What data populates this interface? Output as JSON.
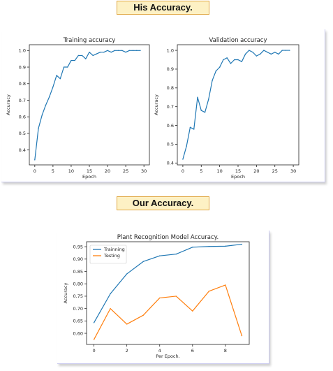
{
  "badges": {
    "top": "His Accuracy.",
    "bottom": "Our Accuracy."
  },
  "colors": {
    "blue": "#1f77b4",
    "orange": "#ff7f0e",
    "badge_bg": "#fdf1c4",
    "badge_border": "#e0a640"
  },
  "chart_data": [
    {
      "id": "training",
      "type": "line",
      "title": "Training accuracy",
      "xlabel": "Epoch",
      "ylabel": "Accuracy",
      "xlim": [
        -1.5,
        31.5
      ],
      "ylim": [
        0.31,
        1.035
      ],
      "xticks": [
        0,
        5,
        10,
        15,
        20,
        25,
        30
      ],
      "yticks": [
        0.4,
        0.5,
        0.6,
        0.7,
        0.8,
        0.9,
        1.0
      ],
      "ytick_labels": [
        "0.4",
        "0.5",
        "0.6",
        "0.7",
        "0.8",
        "0.9",
        "1.0"
      ],
      "series": [
        {
          "color": "#1f77b4",
          "x": [
            0,
            1,
            2,
            3,
            4,
            5,
            6,
            7,
            8,
            9,
            10,
            11,
            12,
            13,
            14,
            15,
            16,
            17,
            18,
            19,
            20,
            21,
            22,
            23,
            24,
            25,
            26,
            27,
            28,
            29
          ],
          "values": [
            0.34,
            0.53,
            0.61,
            0.67,
            0.72,
            0.78,
            0.85,
            0.83,
            0.9,
            0.9,
            0.94,
            0.94,
            0.97,
            0.97,
            0.95,
            0.99,
            0.97,
            0.98,
            0.99,
            0.99,
            1.0,
            0.99,
            1.0,
            1.0,
            1.0,
            0.99,
            1.0,
            1.0,
            1.0,
            1.0
          ]
        }
      ]
    },
    {
      "id": "validation",
      "type": "line",
      "title": "Validation accuracy",
      "xlabel": "Epoch",
      "ylabel": "Accuracy",
      "xlim": [
        -1.5,
        31.5
      ],
      "ylim": [
        0.39,
        1.03
      ],
      "xticks": [
        0,
        5,
        10,
        15,
        20,
        25,
        30
      ],
      "yticks": [
        0.4,
        0.5,
        0.6,
        0.7,
        0.8,
        0.9,
        1.0
      ],
      "ytick_labels": [
        "0.4",
        "0.5",
        "0.6",
        "0.7",
        "0.8",
        "0.9",
        "1.0"
      ],
      "series": [
        {
          "color": "#1f77b4",
          "x": [
            0,
            1,
            2,
            3,
            4,
            5,
            6,
            7,
            8,
            9,
            10,
            11,
            12,
            13,
            14,
            15,
            16,
            17,
            18,
            19,
            20,
            21,
            22,
            23,
            24,
            25,
            26,
            27,
            28,
            29
          ],
          "values": [
            0.42,
            0.49,
            0.59,
            0.58,
            0.75,
            0.68,
            0.67,
            0.74,
            0.84,
            0.89,
            0.91,
            0.95,
            0.96,
            0.93,
            0.95,
            0.95,
            0.94,
            0.98,
            1.0,
            0.99,
            0.97,
            0.98,
            1.0,
            0.99,
            0.98,
            0.99,
            0.98,
            1.0,
            1.0,
            1.0
          ]
        }
      ]
    },
    {
      "id": "plant",
      "type": "line",
      "title": "Plant Recognition Model Accuracy.",
      "xlabel": "Per Epoch.",
      "ylabel": "Accuracy",
      "xlim": [
        -0.45,
        9.45
      ],
      "ylim": [
        0.555,
        0.97
      ],
      "xticks": [
        0,
        2,
        4,
        6,
        8
      ],
      "yticks": [
        0.6,
        0.65,
        0.7,
        0.75,
        0.8,
        0.85,
        0.9,
        0.95
      ],
      "ytick_labels": [
        "0.60",
        "0.65",
        "0.70",
        "0.75",
        "0.80",
        "0.85",
        "0.90",
        "0.95"
      ],
      "legend_position": "top-left",
      "series": [
        {
          "name": "Trainning",
          "color": "#1f77b4",
          "x": [
            0,
            1,
            2,
            3,
            4,
            5,
            6,
            7,
            8,
            9
          ],
          "values": [
            0.643,
            0.76,
            0.84,
            0.89,
            0.913,
            0.92,
            0.948,
            0.951,
            0.952,
            0.96
          ]
        },
        {
          "name": "Testing",
          "color": "#ff7f0e",
          "x": [
            0,
            1,
            2,
            3,
            4,
            5,
            6,
            7,
            8,
            9
          ],
          "values": [
            0.575,
            0.7,
            0.637,
            0.673,
            0.743,
            0.75,
            0.69,
            0.77,
            0.795,
            0.59
          ]
        }
      ]
    }
  ]
}
